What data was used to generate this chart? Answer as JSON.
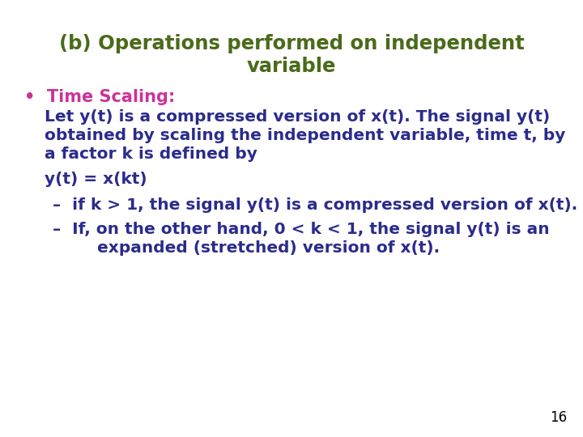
{
  "bg_color": "#ffffff",
  "title_line1": "(b) Operations performed on independent",
  "title_line2": "variable",
  "title_color": "#4a6b1a",
  "title_fontsize": 17.5,
  "bullet_label": "•  Time Scaling:",
  "bullet_color": "#cc3399",
  "bullet_fontsize": 15,
  "body_color": "#2b2b8c",
  "body_fontsize": 14.5,
  "body_lines": [
    "Let y(t) is a compressed version of x(t). The signal y(t)",
    "obtained by scaling the independent variable, time t, by",
    "a factor k is defined by"
  ],
  "equation": "y(t) = x(kt)",
  "equation_fontsize": 14.5,
  "dash1": "–  if k > 1, the signal y(t) is a compressed version of x(t).",
  "dash2_line1": "–  If, on the other hand, 0 < k < 1, the signal y(t) is an",
  "dash2_line2": "     expanded (stretched) version of x(t).",
  "page_number": "16",
  "page_color": "#000000",
  "page_fontsize": 12
}
